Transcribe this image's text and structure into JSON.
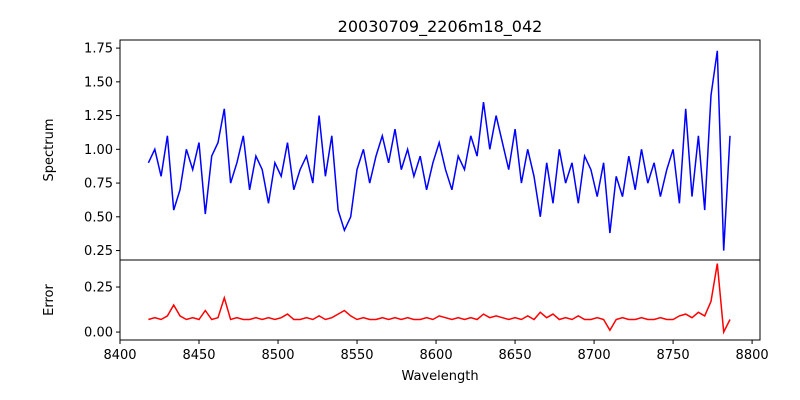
{
  "chart_data": {
    "type": "line",
    "title": "20030709_2206m18_042",
    "xlabel": "Wavelength",
    "xlim": [
      8400,
      8805
    ],
    "xticks": [
      8400,
      8450,
      8500,
      8550,
      8600,
      8650,
      8700,
      8750,
      8800
    ],
    "x_start": 8418,
    "x_step": 4,
    "panels": [
      {
        "name": "spectrum",
        "ylabel": "Spectrum",
        "ylim": [
          0.18,
          1.81
        ],
        "yticks": [
          "0.25",
          "0.50",
          "0.75",
          "1.00",
          "1.25",
          "1.50",
          "1.75"
        ],
        "color": "#0000ff",
        "values": [
          0.9,
          1.0,
          0.8,
          1.1,
          0.55,
          0.7,
          1.0,
          0.85,
          1.05,
          0.52,
          0.95,
          1.05,
          1.3,
          0.75,
          0.9,
          1.1,
          0.7,
          0.95,
          0.85,
          0.6,
          0.9,
          0.8,
          1.05,
          0.7,
          0.85,
          0.95,
          0.75,
          1.25,
          0.8,
          1.1,
          0.55,
          0.4,
          0.5,
          0.85,
          1.0,
          0.75,
          0.95,
          1.1,
          0.9,
          1.15,
          0.85,
          1.0,
          0.8,
          0.95,
          0.7,
          0.9,
          1.05,
          0.85,
          0.7,
          0.95,
          0.85,
          1.1,
          0.95,
          1.35,
          1.0,
          1.25,
          1.05,
          0.85,
          1.15,
          0.75,
          1.0,
          0.8,
          0.5,
          0.9,
          0.6,
          1.0,
          0.75,
          0.9,
          0.6,
          0.95,
          0.85,
          0.65,
          0.9,
          0.38,
          0.8,
          0.65,
          0.95,
          0.7,
          1.0,
          0.75,
          0.9,
          0.65,
          0.85,
          1.0,
          0.6,
          1.3,
          0.65,
          1.1,
          0.55,
          1.4,
          1.73,
          0.25,
          1.1
        ]
      },
      {
        "name": "error",
        "ylabel": "Error",
        "ylim": [
          -0.044,
          0.4
        ],
        "yticks": [
          "0.00",
          "0.25"
        ],
        "color": "#ff0000",
        "values": [
          0.07,
          0.08,
          0.07,
          0.09,
          0.15,
          0.09,
          0.07,
          0.08,
          0.07,
          0.12,
          0.07,
          0.08,
          0.19,
          0.07,
          0.08,
          0.07,
          0.07,
          0.08,
          0.07,
          0.08,
          0.07,
          0.08,
          0.1,
          0.07,
          0.07,
          0.08,
          0.07,
          0.09,
          0.07,
          0.08,
          0.1,
          0.12,
          0.09,
          0.07,
          0.08,
          0.07,
          0.07,
          0.08,
          0.07,
          0.08,
          0.07,
          0.08,
          0.07,
          0.07,
          0.08,
          0.07,
          0.09,
          0.08,
          0.07,
          0.08,
          0.07,
          0.08,
          0.07,
          0.1,
          0.08,
          0.09,
          0.08,
          0.07,
          0.08,
          0.07,
          0.09,
          0.07,
          0.11,
          0.08,
          0.1,
          0.07,
          0.08,
          0.07,
          0.09,
          0.07,
          0.07,
          0.08,
          0.07,
          0.01,
          0.07,
          0.08,
          0.07,
          0.07,
          0.08,
          0.07,
          0.07,
          0.08,
          0.07,
          0.07,
          0.09,
          0.1,
          0.08,
          0.11,
          0.09,
          0.17,
          0.38,
          0.0,
          0.07
        ]
      }
    ]
  }
}
